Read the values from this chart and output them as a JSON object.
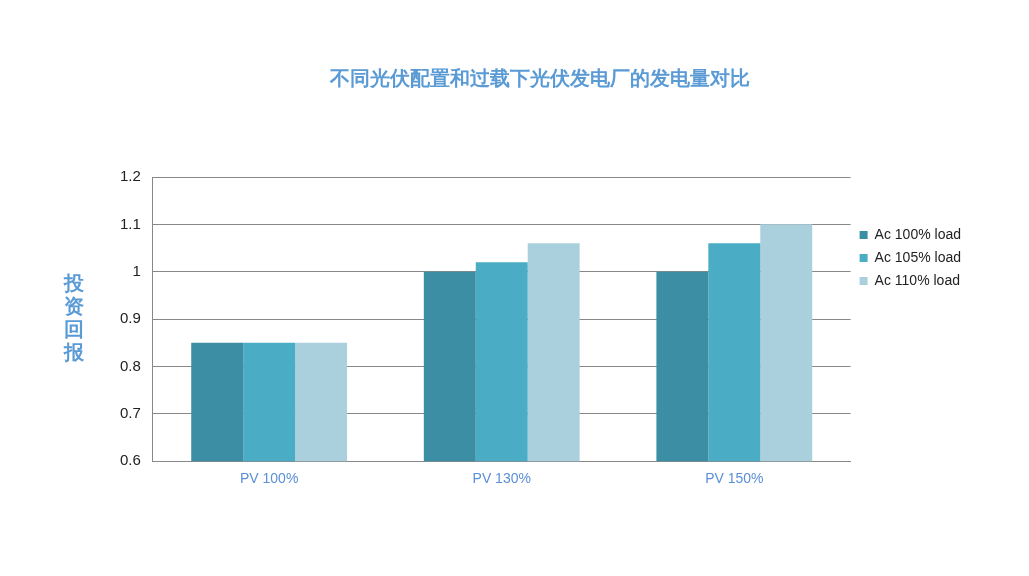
{
  "chart_data": {
    "type": "bar",
    "title": "不同光伏配置和过载下光伏发电厂的发电量对比",
    "ylabel": "投资回报",
    "categories": [
      "PV 100%",
      "PV 130%",
      "PV 150%"
    ],
    "series": [
      {
        "name": "Ac 100% load",
        "color": "#3c8ea5",
        "values": [
          0.85,
          1.0,
          1.0
        ]
      },
      {
        "name": "Ac 105% load",
        "color": "#4bacc6",
        "values": [
          0.85,
          1.02,
          1.06
        ]
      },
      {
        "name": "Ac 110% load",
        "color": "#a9d0dc",
        "values": [
          0.85,
          1.06,
          1.1
        ]
      }
    ],
    "ylim": [
      0.6,
      1.2
    ],
    "yticks": [
      0.6,
      0.7,
      0.8,
      0.9,
      1,
      1.1,
      1.2
    ],
    "grid": "y",
    "legend": "right"
  }
}
